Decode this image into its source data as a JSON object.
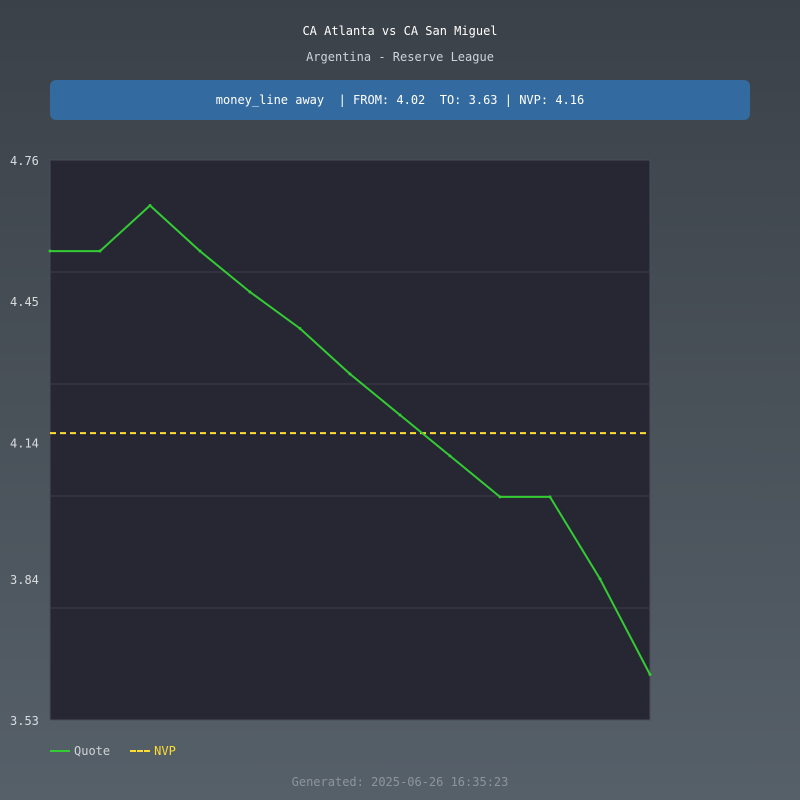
{
  "header": {
    "title": "CA Atlanta vs CA San Miguel",
    "subtitle": "Argentina - Reserve League"
  },
  "banner": {
    "text": "money_line away  | FROM: 4.02  TO: 3.63 | NVP: 4.16"
  },
  "legend": {
    "quote_label": "Quote",
    "nvp_label": "NVP"
  },
  "footer": {
    "generated": "Generated: 2025-06-26 16:35:23"
  },
  "colors": {
    "quote": "#33cc33",
    "nvp": "#ffdd33",
    "plot_bg": "#262733",
    "grid": "#3c3e4a",
    "banner": "#336aa0"
  },
  "chart_data": {
    "type": "line",
    "ylim": [
      3.53,
      4.76
    ],
    "yticks": [
      "4.76",
      "4.45",
      "4.14",
      "3.84",
      "3.53"
    ],
    "grid": true,
    "legend_position": "bottom-left",
    "series": [
      {
        "name": "Quote",
        "values": [
          4.56,
          4.56,
          4.66,
          4.56,
          4.47,
          4.39,
          4.29,
          4.2,
          4.11,
          4.02,
          4.02,
          3.84,
          3.63
        ]
      }
    ],
    "nvp": 4.16
  }
}
